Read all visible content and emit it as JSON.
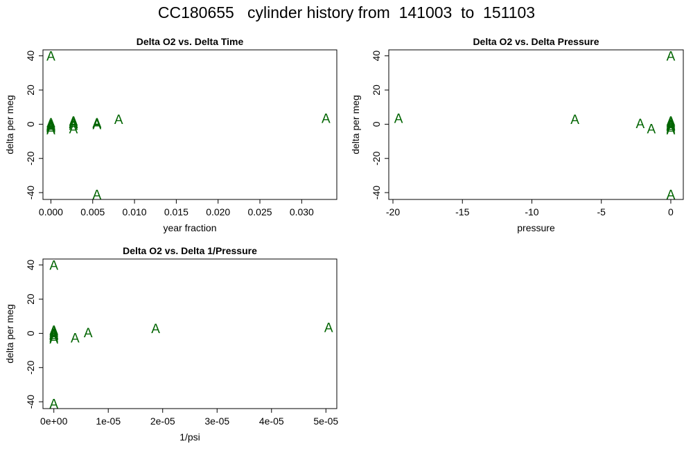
{
  "title": "CC180655   cylinder history from  141003  to  151103",
  "point_color": "#006400",
  "point_symbol": "A",
  "chart_data": [
    {
      "type": "scatter",
      "title": "Delta O2 vs. Delta Time",
      "xlabel": "year fraction",
      "ylabel": "delta per meg",
      "xlim": [
        -0.00095,
        0.0342
      ],
      "ylim": [
        -44,
        43.5
      ],
      "xticks": [
        0,
        0.005,
        0.01,
        0.015,
        0.02,
        0.025,
        0.03
      ],
      "xtick_labels": [
        "0.000",
        "0.005",
        "0.010",
        "0.015",
        "0.020",
        "0.025",
        "0.030"
      ],
      "yticks": [
        -40,
        -20,
        0,
        20,
        40
      ],
      "ytick_labels": [
        "-40",
        "-20",
        "0",
        "20",
        "40"
      ],
      "grid": false,
      "x": [
        0.0,
        0.0,
        0.0,
        0.0,
        0.0,
        0.0,
        0.0,
        0.0,
        0.0027,
        0.0027,
        0.0027,
        0.0027,
        0.0027,
        0.0055,
        0.0055,
        0.0055,
        0.0081,
        0.0329,
        0.0055
      ],
      "y": [
        40,
        1,
        0,
        -0.5,
        -1,
        -1.5,
        -2,
        -3,
        2,
        1,
        0.5,
        -0.5,
        -2.5,
        1,
        0,
        0.5,
        3,
        3.5,
        -41
      ]
    },
    {
      "type": "scatter",
      "title": "Delta O2 vs. Delta Pressure",
      "xlabel": "pressure",
      "ylabel": "delta per meg",
      "xlim": [
        -20.3,
        0.9
      ],
      "ylim": [
        -44,
        43.5
      ],
      "xticks": [
        -20,
        -15,
        -10,
        -5,
        0
      ],
      "xtick_labels": [
        "-20",
        "-15",
        "-10",
        "-5",
        "0"
      ],
      "yticks": [
        -40,
        -20,
        0,
        20,
        40
      ],
      "ytick_labels": [
        "-40",
        "-20",
        "0",
        "20",
        "40"
      ],
      "grid": false,
      "x": [
        -19.6,
        -6.9,
        -2.2,
        -1.4,
        0,
        0,
        0,
        0,
        0,
        0,
        0,
        0,
        0
      ],
      "y": [
        3.5,
        3,
        0.5,
        -2.5,
        40,
        2,
        1,
        0,
        -0.5,
        -1,
        -2,
        -3,
        -41
      ]
    },
    {
      "type": "scatter",
      "title": "Delta O2 vs. Delta 1/Pressure",
      "xlabel": "1/psi",
      "ylabel": "delta per meg",
      "xlim": [
        -2e-06,
        5.2e-05
      ],
      "ylim": [
        -44,
        43.5
      ],
      "xticks": [
        0,
        1e-05,
        2e-05,
        3e-05,
        4e-05,
        5e-05
      ],
      "xtick_labels": [
        "0e+00",
        "1e-05",
        "2e-05",
        "3e-05",
        "4e-05",
        "5e-05"
      ],
      "yticks": [
        -40,
        -20,
        0,
        20,
        40
      ],
      "ytick_labels": [
        "-40",
        "-20",
        "0",
        "20",
        "40"
      ],
      "grid": false,
      "x": [
        0,
        0,
        0,
        0,
        0,
        0,
        0,
        0,
        0,
        3.9e-06,
        6.3e-06,
        1.87e-05,
        5.05e-05
      ],
      "y": [
        40,
        2,
        1,
        0,
        -0.5,
        -1,
        -2,
        -3,
        -41,
        -2.5,
        0.5,
        3,
        3.5
      ]
    }
  ]
}
